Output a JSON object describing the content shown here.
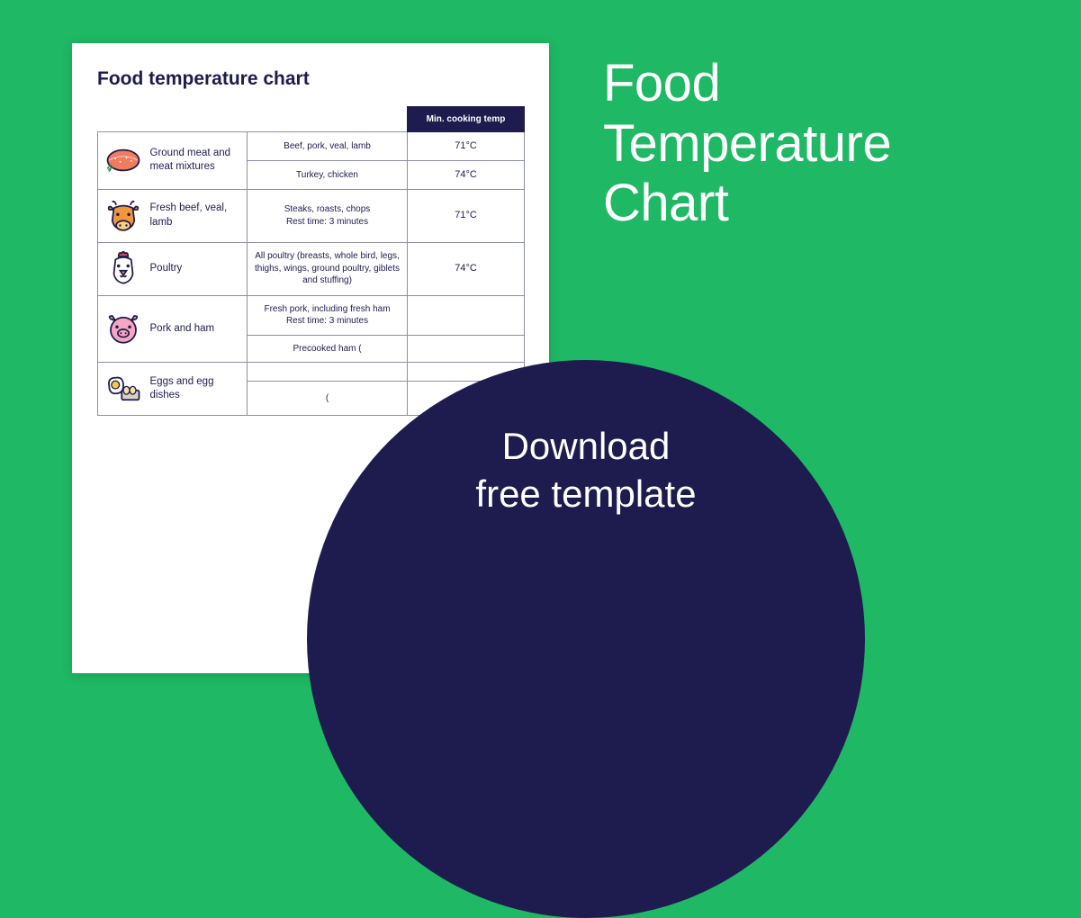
{
  "background_color": "#1fb864",
  "table_border_color": "#8e8ea7",
  "header_bg": "#1e1b4f",
  "text_color": "#1e1b4f",
  "headline": "Food Temperature Chart",
  "cta": "Download free template",
  "doc": {
    "title": "Food temperature chart",
    "temp_header": "Min. cooking temp",
    "rows": [
      {
        "label": "Ground meat and meat mixtures",
        "items": [
          {
            "desc": "Beef, pork, veal, lamb",
            "temp": "71°C"
          },
          {
            "desc": "Turkey, chicken",
            "temp": "74°C"
          }
        ]
      },
      {
        "label": "Fresh beef, veal, lamb",
        "items": [
          {
            "desc": "Steaks, roasts, chops\nRest time: 3 minutes",
            "temp": "71°C"
          }
        ]
      },
      {
        "label": "Poultry",
        "items": [
          {
            "desc": "All poultry (breasts, whole bird, legs, thighs, wings, ground poultry, giblets and stuffing)",
            "temp": "74°C"
          }
        ]
      },
      {
        "label": "Pork and ham",
        "items": [
          {
            "desc": "Fresh pork, including fresh ham\nRest time: 3 minutes",
            "temp": ""
          },
          {
            "desc": "Precooked ham (",
            "temp": ""
          }
        ]
      },
      {
        "label": "Eggs and egg dishes",
        "items": [
          {
            "desc": "",
            "temp": ""
          },
          {
            "desc": "(",
            "temp": ""
          }
        ]
      }
    ]
  }
}
